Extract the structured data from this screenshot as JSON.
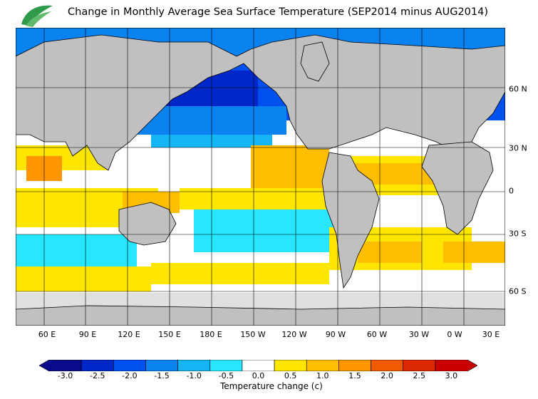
{
  "title": "Change in Monthly Average Sea Surface Temperature (SEP2014 minus AUG2014)",
  "logo_icon": "leaf-logo-icon",
  "map": {
    "projection": "equirectangular",
    "longitude_range": [
      35,
      385
    ],
    "latitude_range": [
      -80,
      87
    ],
    "grid": true,
    "land_color": "#c0c0c0",
    "sea_ice_color": "#e0e0e0"
  },
  "longitude_labels": [
    "60 E",
    "90 E",
    "120 E",
    "150 E",
    "180 E",
    "150 W",
    "120 W",
    "90 W",
    "60 W",
    "30 W",
    "0 W",
    "30 E"
  ],
  "latitude_labels": [
    "60 N",
    "30 N",
    "0",
    "30 S",
    "60 S"
  ],
  "colorbar": {
    "labels": [
      "-3.0",
      "-2.5",
      "-2.0",
      "-1.5",
      "-1.0",
      "-0.5",
      "0.0",
      "0.5",
      "1.0",
      "1.5",
      "2.0",
      "2.5",
      "3.0"
    ],
    "colors": [
      "#0a0a8c",
      "#0028c8",
      "#0050f0",
      "#0a82f0",
      "#14b4f5",
      "#28e6ff",
      "#ffffff",
      "#ffe600",
      "#ffbe00",
      "#ff9600",
      "#f05a00",
      "#dc2800",
      "#c80000"
    ],
    "title": "Temperature change  (c)"
  }
}
